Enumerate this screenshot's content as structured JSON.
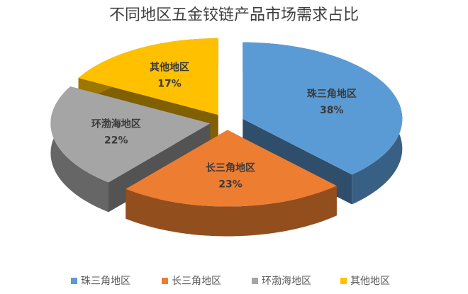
{
  "chart_data": {
    "type": "pie",
    "title": "不同地区五金铰链产品市场需求占比",
    "categories": [
      "珠三角地区",
      "长三角地区",
      "环渤海地区",
      "其他地区"
    ],
    "values": [
      38,
      23,
      22,
      17
    ],
    "value_labels": [
      "38%",
      "23%",
      "22%",
      "17%"
    ],
    "colors": [
      "#5b9bd5",
      "#ed7d31",
      "#a5a5a5",
      "#ffc000"
    ],
    "legend": "bottom"
  }
}
